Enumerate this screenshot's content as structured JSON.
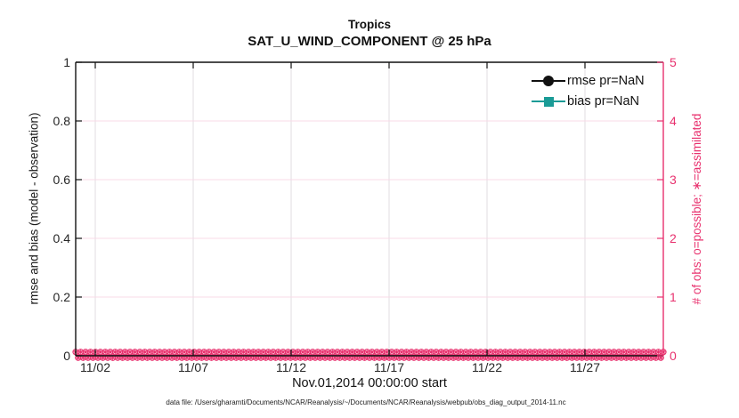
{
  "titles": {
    "line1": "Tropics",
    "line2": "SAT_U_WIND_COMPONENT @ 25 hPa"
  },
  "axes": {
    "left_label": "rmse and bias (model - observation)",
    "right_label": "# of obs: o=possible; ∗=assimilated",
    "x_label": "Nov.01,2014 00:00:00 start",
    "left_tick_labels": [
      "0",
      "0.2",
      "0.4",
      "0.6",
      "0.8",
      "1"
    ],
    "right_tick_labels": [
      "0",
      "1",
      "2",
      "3",
      "4",
      "5"
    ],
    "x_tick_labels": [
      "11/02",
      "11/07",
      "11/12",
      "11/17",
      "11/22",
      "11/27"
    ]
  },
  "legend": {
    "items": [
      {
        "label": "rmse pr=NaN",
        "color": "#111111",
        "marker": "circle"
      },
      {
        "label": "bias pr=NaN",
        "color": "#1a9b96",
        "marker": "square"
      }
    ]
  },
  "footer": {
    "text": "data file: /Users/gharamti/Documents/NCAR/Reanalysis/~/Documents/NCAR/Reanalysis/webpub/obs_diag_output_2014-11.nc"
  },
  "colors": {
    "accent_pink": "#e8316e",
    "grid_vertical": "#e1dde1",
    "grid_horizontal": "#f9dbe7",
    "axis_black": "#111111",
    "bias_teal": "#1a9b96",
    "tick_text": "#262626"
  },
  "chart_data": {
    "type": "line",
    "title": "Tropics",
    "subtitle": "SAT_U_WIND_COMPONENT @ 25 hPa",
    "xlabel": "Nov.01,2014 00:00:00 start",
    "ylabel_left": "rmse and bias (model - observation)",
    "ylabel_right": "# of obs: o=possible; ∗=assimilated",
    "x_range_days": [
      0,
      30
    ],
    "x_tick_days": [
      1,
      6,
      11,
      16,
      21,
      26
    ],
    "x_tick_labels": [
      "11/02",
      "11/07",
      "11/12",
      "11/17",
      "11/22",
      "11/27"
    ],
    "ylim_left": [
      0,
      1
    ],
    "yticks_left": [
      0,
      0.2,
      0.4,
      0.6,
      0.8,
      1
    ],
    "ylim_right": [
      0,
      5
    ],
    "yticks_right": [
      0,
      1,
      2,
      3,
      4,
      5
    ],
    "grid": true,
    "legend_position": "top-right-inside",
    "series": [
      {
        "name": "rmse pr=NaN",
        "axis": "left",
        "values_all": "NaN",
        "note": "no curve plotted"
      },
      {
        "name": "bias pr=NaN",
        "axis": "left",
        "values_all": "NaN",
        "note": "no curve plotted"
      },
      {
        "name": "# of obs possible (o)",
        "axis": "right",
        "constant_value": 0,
        "n_points": 120
      },
      {
        "name": "# of obs assimilated (∗)",
        "axis": "right",
        "constant_value": 0,
        "n_points": 120
      }
    ]
  }
}
